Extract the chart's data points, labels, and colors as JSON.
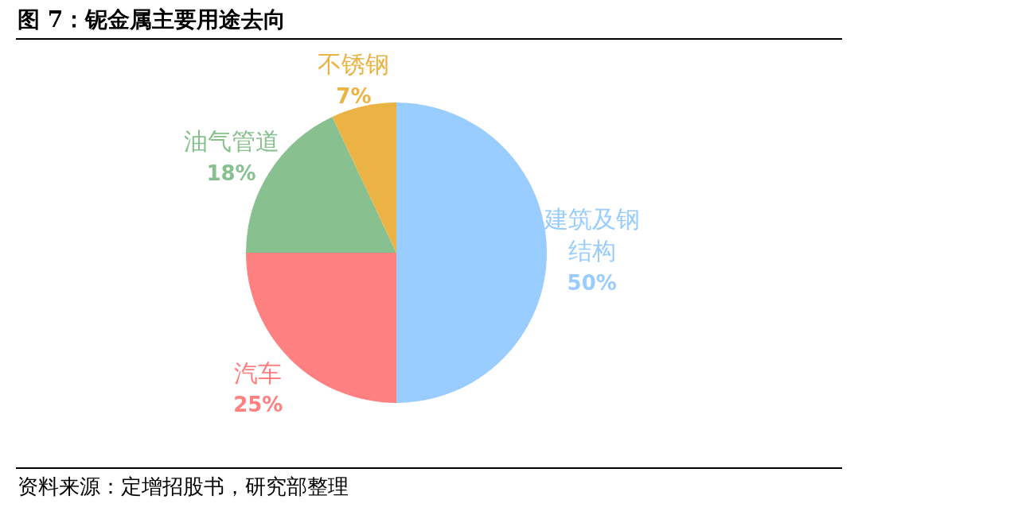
{
  "chart_data": {
    "type": "pie",
    "title": "图 7：铌金属主要用途去向",
    "categories": [
      "建筑及钢结构",
      "汽车",
      "油气管道",
      "不锈钢"
    ],
    "values": [
      50,
      25,
      18,
      7
    ],
    "colors": [
      "#99ccff",
      "#ff8080",
      "#88c090",
      "#ebb244"
    ],
    "value_labels": [
      "50%",
      "25%",
      "18%",
      "7%"
    ],
    "legend": false,
    "annotations": [
      "资料来源：定增招股书，研究部整理"
    ]
  }
}
